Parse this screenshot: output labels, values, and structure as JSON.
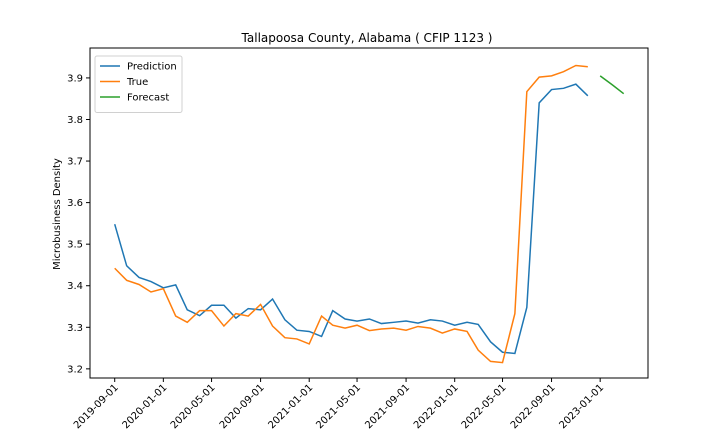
{
  "chart_data": {
    "type": "line",
    "title": "Tallapoosa County, Alabama ( CFIP 1123 )",
    "y_label": "Microbusiness Density",
    "legend": "upper left",
    "xlim": [
      "2019-07-01",
      "2023-05-01"
    ],
    "xticks": [
      "2019-09-01",
      "2020-01-01",
      "2020-05-01",
      "2020-09-01",
      "2021-01-01",
      "2021-05-01",
      "2021-09-01",
      "2022-01-01",
      "2022-05-01",
      "2022-09-01",
      "2023-01-01"
    ],
    "ylim": [
      3.178,
      3.972
    ],
    "yticks": [
      3.2,
      3.3,
      3.4,
      3.5,
      3.6,
      3.7,
      3.8,
      3.9
    ],
    "series": [
      {
        "name": "Prediction",
        "color": "#1f77b4",
        "x": [
          "2019-09-01",
          "2019-10-01",
          "2019-11-01",
          "2019-12-01",
          "2020-01-01",
          "2020-02-01",
          "2020-03-01",
          "2020-04-01",
          "2020-05-01",
          "2020-06-01",
          "2020-07-01",
          "2020-08-01",
          "2020-09-01",
          "2020-10-01",
          "2020-11-01",
          "2020-12-01",
          "2021-01-01",
          "2021-02-01",
          "2021-03-01",
          "2021-04-01",
          "2021-05-01",
          "2021-06-01",
          "2021-07-01",
          "2021-08-01",
          "2021-09-01",
          "2021-10-01",
          "2021-11-01",
          "2021-12-01",
          "2022-01-01",
          "2022-02-01",
          "2022-03-01",
          "2022-04-01",
          "2022-05-01",
          "2022-06-01",
          "2022-07-01",
          "2022-08-01",
          "2022-09-01",
          "2022-10-01",
          "2022-11-01",
          "2022-12-01"
        ],
        "values": [
          3.548,
          3.448,
          3.42,
          3.41,
          3.395,
          3.402,
          3.342,
          3.328,
          3.353,
          3.353,
          3.322,
          3.345,
          3.342,
          3.368,
          3.318,
          3.293,
          3.29,
          3.278,
          3.34,
          3.32,
          3.315,
          3.32,
          3.309,
          3.312,
          3.315,
          3.31,
          3.318,
          3.315,
          3.305,
          3.312,
          3.307,
          3.265,
          3.24,
          3.237,
          3.348,
          3.84,
          3.872,
          3.875,
          3.885,
          3.857
        ]
      },
      {
        "name": "True",
        "color": "#ff7f0e",
        "x": [
          "2019-09-01",
          "2019-10-01",
          "2019-11-01",
          "2019-12-01",
          "2020-01-01",
          "2020-02-01",
          "2020-03-01",
          "2020-04-01",
          "2020-05-01",
          "2020-06-01",
          "2020-07-01",
          "2020-08-01",
          "2020-09-01",
          "2020-10-01",
          "2020-11-01",
          "2020-12-01",
          "2021-01-01",
          "2021-02-01",
          "2021-03-01",
          "2021-04-01",
          "2021-05-01",
          "2021-06-01",
          "2021-07-01",
          "2021-08-01",
          "2021-09-01",
          "2021-10-01",
          "2021-11-01",
          "2021-12-01",
          "2022-01-01",
          "2022-02-01",
          "2022-03-01",
          "2022-04-01",
          "2022-05-01",
          "2022-06-01",
          "2022-07-01",
          "2022-08-01",
          "2022-09-01",
          "2022-10-01",
          "2022-11-01",
          "2022-12-01"
        ],
        "values": [
          3.442,
          3.413,
          3.403,
          3.385,
          3.393,
          3.327,
          3.312,
          3.34,
          3.34,
          3.303,
          3.333,
          3.327,
          3.355,
          3.303,
          3.275,
          3.272,
          3.26,
          3.327,
          3.305,
          3.298,
          3.305,
          3.292,
          3.296,
          3.298,
          3.293,
          3.302,
          3.298,
          3.286,
          3.296,
          3.29,
          3.245,
          3.218,
          3.215,
          3.333,
          3.867,
          3.902,
          3.905,
          3.915,
          3.93,
          3.927
        ]
      },
      {
        "name": "Forecast",
        "color": "#2ca02c",
        "x": [
          "2023-01-01",
          "2023-02-01",
          "2023-03-01"
        ],
        "values": [
          3.905,
          3.883,
          3.862
        ]
      }
    ]
  }
}
